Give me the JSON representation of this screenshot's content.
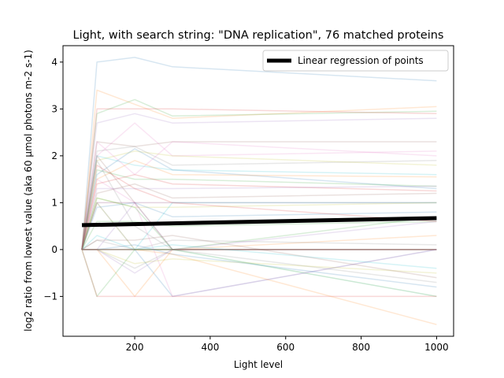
{
  "chart_data": {
    "type": "line",
    "title": "Light, with search string: \"DNA replication\", 76 matched proteins",
    "xlabel": "Light level",
    "ylabel": "log2 ratio from lowest value (aka 60 µmol photons m-2 s-1)",
    "x": [
      60,
      100,
      200,
      300,
      1000
    ],
    "xlim": [
      10,
      1045
    ],
    "ylim": [
      -1.85,
      4.35
    ],
    "x_ticks": [
      200,
      400,
      600,
      800,
      1000
    ],
    "y_ticks": [
      -1,
      0,
      1,
      2,
      3,
      4
    ],
    "x_tick_labels": [
      "200",
      "400",
      "600",
      "800",
      "1000"
    ],
    "y_tick_labels": [
      "−1",
      "0",
      "1",
      "2",
      "3",
      "4"
    ],
    "grid": false,
    "legend": {
      "placement": "top-right",
      "entries": [
        "Linear regression of points"
      ]
    },
    "regression": {
      "name": "Linear regression of points",
      "x": [
        60,
        1000
      ],
      "y": [
        0.52,
        0.67
      ],
      "color": "#000000"
    },
    "palette": [
      "#1f77b4",
      "#ff7f0e",
      "#2ca02c",
      "#d62728",
      "#9467bd",
      "#8c564b",
      "#e377c2",
      "#7f7f7f",
      "#bcbd22",
      "#17becf"
    ],
    "series": [
      {
        "values": [
          0,
          4.0,
          4.1,
          3.9,
          3.6
        ]
      },
      {
        "values": [
          0,
          3.4,
          3.1,
          2.8,
          3.05
        ]
      },
      {
        "values": [
          0,
          2.9,
          3.2,
          2.85,
          2.95
        ]
      },
      {
        "values": [
          0,
          3.0,
          3.0,
          3.0,
          2.9
        ]
      },
      {
        "values": [
          0,
          2.7,
          2.9,
          2.7,
          2.8
        ]
      },
      {
        "values": [
          0,
          2.3,
          2.2,
          2.3,
          2.3
        ]
      },
      {
        "values": [
          0,
          2.0,
          2.7,
          2.0,
          2.1
        ]
      },
      {
        "values": [
          0,
          2.1,
          2.2,
          1.8,
          1.9
        ]
      },
      {
        "values": [
          0,
          1.9,
          2.1,
          2.0,
          1.8
        ]
      },
      {
        "values": [
          0,
          2.0,
          1.8,
          1.7,
          1.6
        ]
      },
      {
        "values": [
          0,
          1.6,
          2.15,
          1.7,
          1.3
        ]
      },
      {
        "values": [
          0,
          1.5,
          1.9,
          1.6,
          1.55
        ]
      },
      {
        "values": [
          0,
          1.7,
          1.5,
          1.5,
          1.35
        ]
      },
      {
        "values": [
          0,
          1.4,
          1.6,
          1.4,
          1.25
        ]
      },
      {
        "values": [
          0,
          1.3,
          1.3,
          1.3,
          1.35
        ]
      },
      {
        "values": [
          0,
          1.2,
          1.4,
          1.1,
          1.2
        ]
      },
      {
        "values": [
          0,
          1.0,
          1.0,
          1.0,
          1.0
        ]
      },
      {
        "values": [
          0,
          1.0,
          1.0,
          1.0,
          1.0
        ]
      },
      {
        "values": [
          0,
          1.1,
          0.9,
          0.9,
          1.0
        ]
      },
      {
        "values": [
          0,
          1.0,
          0.0,
          1.0,
          1.0
        ]
      },
      {
        "values": [
          0,
          0.9,
          1.0,
          0.7,
          0.8
        ]
      },
      {
        "values": [
          0,
          1.0,
          0.0,
          0.0,
          0.3
        ]
      },
      {
        "values": [
          0,
          0.6,
          0.6,
          0.5,
          0.6
        ]
      },
      {
        "values": [
          0,
          0.0,
          0.0,
          0.0,
          0.0
        ]
      },
      {
        "values": [
          0,
          0.0,
          0.0,
          0.0,
          0.0
        ]
      },
      {
        "values": [
          0,
          0.0,
          0.0,
          0.0,
          0.0
        ]
      },
      {
        "values": [
          0,
          0.0,
          0.0,
          0.0,
          0.0
        ]
      },
      {
        "values": [
          0,
          0.2,
          0.0,
          0.2,
          0.1
        ]
      },
      {
        "values": [
          0,
          0.0,
          0.0,
          0.0,
          -1.0
        ]
      },
      {
        "values": [
          0,
          0.0,
          0.0,
          0.0,
          -1.0
        ]
      },
      {
        "values": [
          0,
          0.0,
          0.0,
          -1.0,
          0.0
        ]
      },
      {
        "values": [
          0,
          0.0,
          -1.0,
          0.0,
          0.0
        ]
      },
      {
        "values": [
          0,
          -1.0,
          0.0,
          0.0,
          0.0
        ]
      },
      {
        "values": [
          0,
          -1.0,
          -1.0,
          -1.0,
          -1.0
        ]
      },
      {
        "values": [
          0,
          0.0,
          1.0,
          0.0,
          0.0
        ]
      },
      {
        "values": [
          0,
          2.0,
          1.0,
          0.0,
          0.0
        ]
      },
      {
        "values": [
          0,
          1.5,
          1.0,
          -1.0,
          0.0
        ]
      },
      {
        "values": [
          0,
          0.0,
          -0.4,
          0.0,
          -0.7
        ]
      },
      {
        "values": [
          0,
          0.0,
          -0.3,
          -0.2,
          -0.5
        ]
      },
      {
        "values": [
          0,
          0.3,
          0.0,
          0.1,
          -0.4
        ]
      },
      {
        "values": [
          0,
          0.0,
          0.1,
          -0.1,
          -0.8
        ]
      },
      {
        "values": [
          0,
          0.0,
          0.0,
          -0.1,
          -1.6
        ]
      },
      {
        "values": [
          0,
          1.1,
          0.9,
          0.0,
          0.7
        ]
      },
      {
        "values": [
          0,
          1.8,
          1.3,
          1.0,
          0.6
        ]
      },
      {
        "values": [
          0,
          0.0,
          -0.5,
          0.0,
          0.6
        ]
      },
      {
        "values": [
          0,
          0.2,
          0.2,
          0.3,
          -0.6
        ]
      },
      {
        "values": [
          0,
          2.3,
          1.6,
          2.3,
          2.0
        ]
      },
      {
        "values": [
          0,
          1.9,
          0.5,
          0.0,
          0.0
        ]
      }
    ]
  }
}
